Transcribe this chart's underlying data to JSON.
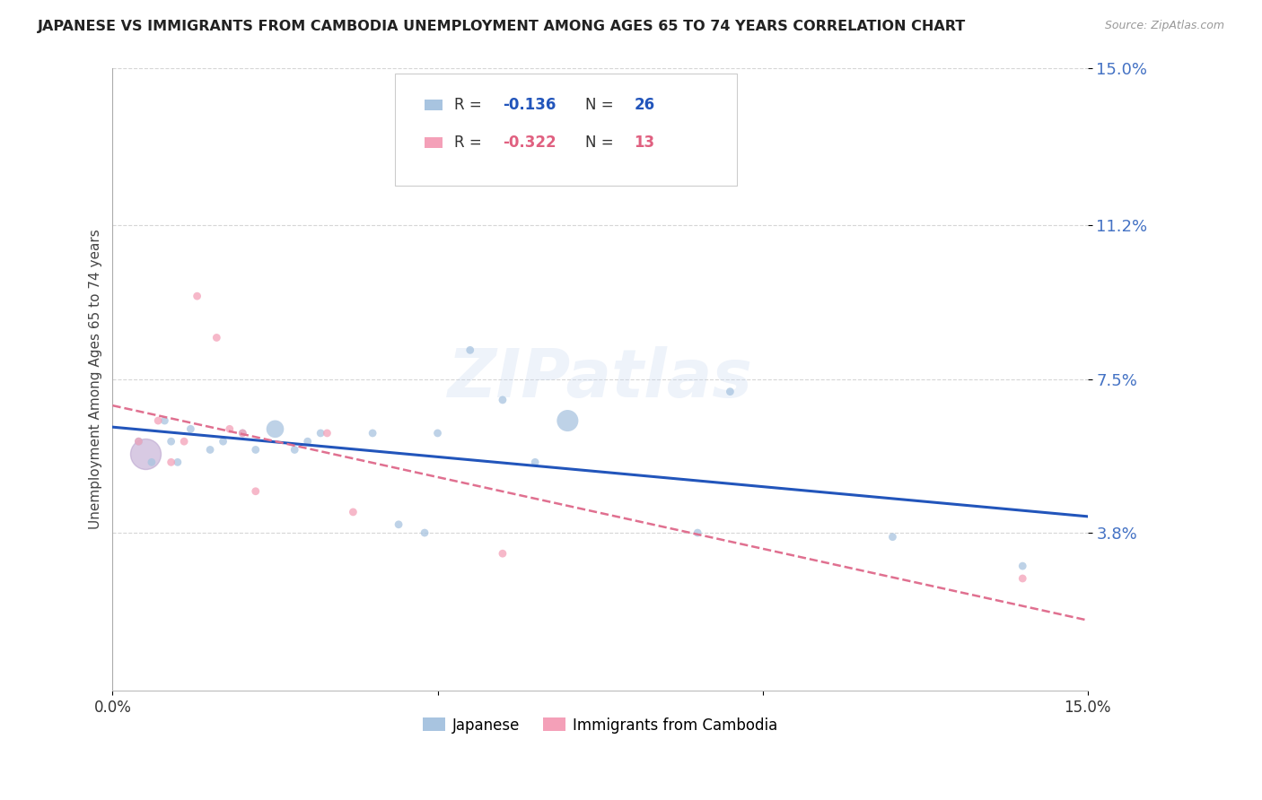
{
  "title": "JAPANESE VS IMMIGRANTS FROM CAMBODIA UNEMPLOYMENT AMONG AGES 65 TO 74 YEARS CORRELATION CHART",
  "source": "Source: ZipAtlas.com",
  "ylabel": "Unemployment Among Ages 65 to 74 years",
  "xlim": [
    0.0,
    0.15
  ],
  "ylim": [
    0.0,
    0.15
  ],
  "yticks": [
    0.038,
    0.075,
    0.112,
    0.15
  ],
  "ytick_labels": [
    "3.8%",
    "7.5%",
    "11.2%",
    "15.0%"
  ],
  "xticks": [
    0.0,
    0.05,
    0.1,
    0.15
  ],
  "xtick_labels": [
    "0.0%",
    "",
    "",
    "15.0%"
  ],
  "watermark": "ZIPatlas",
  "japanese_color": "#a8c4e0",
  "cambodia_color": "#f4a0b8",
  "japanese_line_color": "#2255bb",
  "cambodia_line_color": "#e07090",
  "japanese_x": [
    0.004,
    0.006,
    0.008,
    0.009,
    0.01,
    0.012,
    0.015,
    0.017,
    0.02,
    0.022,
    0.025,
    0.028,
    0.03,
    0.032,
    0.04,
    0.044,
    0.048,
    0.05,
    0.055,
    0.06,
    0.065,
    0.07,
    0.09,
    0.095,
    0.12,
    0.14
  ],
  "japanese_y": [
    0.06,
    0.055,
    0.065,
    0.06,
    0.055,
    0.063,
    0.058,
    0.06,
    0.062,
    0.058,
    0.063,
    0.058,
    0.06,
    0.062,
    0.062,
    0.04,
    0.038,
    0.062,
    0.082,
    0.07,
    0.055,
    0.065,
    0.038,
    0.072,
    0.037,
    0.03
  ],
  "japanese_sizes": [
    40,
    40,
    40,
    40,
    40,
    40,
    40,
    40,
    40,
    40,
    200,
    40,
    40,
    40,
    40,
    40,
    40,
    40,
    40,
    40,
    40,
    300,
    40,
    40,
    40,
    40
  ],
  "cambodia_x": [
    0.004,
    0.007,
    0.009,
    0.011,
    0.013,
    0.016,
    0.018,
    0.02,
    0.022,
    0.033,
    0.037,
    0.06,
    0.14
  ],
  "cambodia_y": [
    0.06,
    0.065,
    0.055,
    0.06,
    0.095,
    0.085,
    0.063,
    0.062,
    0.048,
    0.062,
    0.043,
    0.033,
    0.027
  ],
  "cambodia_sizes": [
    40,
    40,
    40,
    40,
    40,
    40,
    40,
    40,
    40,
    40,
    40,
    40,
    40
  ],
  "overlap_blob_x": [
    0.005
  ],
  "overlap_blob_y": [
    0.057
  ],
  "overlap_blob_size": [
    600
  ]
}
